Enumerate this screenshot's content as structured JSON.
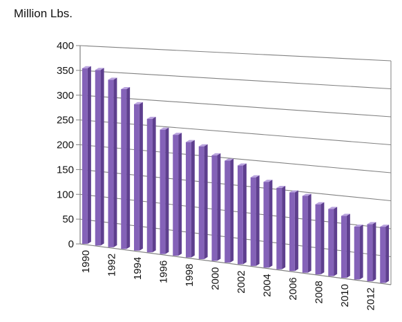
{
  "chart_data": {
    "type": "bar",
    "style": "3d-column",
    "ylabel": "Million Lbs.",
    "ylim": [
      0,
      400
    ],
    "yticks": [
      0,
      50,
      100,
      150,
      200,
      250,
      300,
      350,
      400
    ],
    "categories": [
      "1990",
      "1991",
      "1992",
      "1993",
      "1994",
      "1995",
      "1996",
      "1997",
      "1998",
      "1999",
      "2000",
      "2001",
      "2002",
      "2003",
      "2004",
      "2005",
      "2006",
      "2007",
      "2008",
      "2009",
      "2010",
      "2011",
      "2012",
      "2013"
    ],
    "x_tick_labels_shown": [
      "1990",
      "1992",
      "1994",
      "1996",
      "1998",
      "2000",
      "2002",
      "2004",
      "2006",
      "2008",
      "2010",
      "2012"
    ],
    "values": [
      355,
      353,
      335,
      318,
      290,
      263,
      244,
      236,
      224,
      218,
      203,
      195,
      188,
      168,
      162,
      153,
      147,
      143,
      130,
      124,
      114,
      97,
      104,
      102
    ],
    "grid": true,
    "legend": "none"
  },
  "colors": {
    "bar_front": "#8462b8",
    "bar_side": "#5e3f8e",
    "bar_top": "#b9a3de",
    "grid": "#808080",
    "axis": "#808080"
  }
}
